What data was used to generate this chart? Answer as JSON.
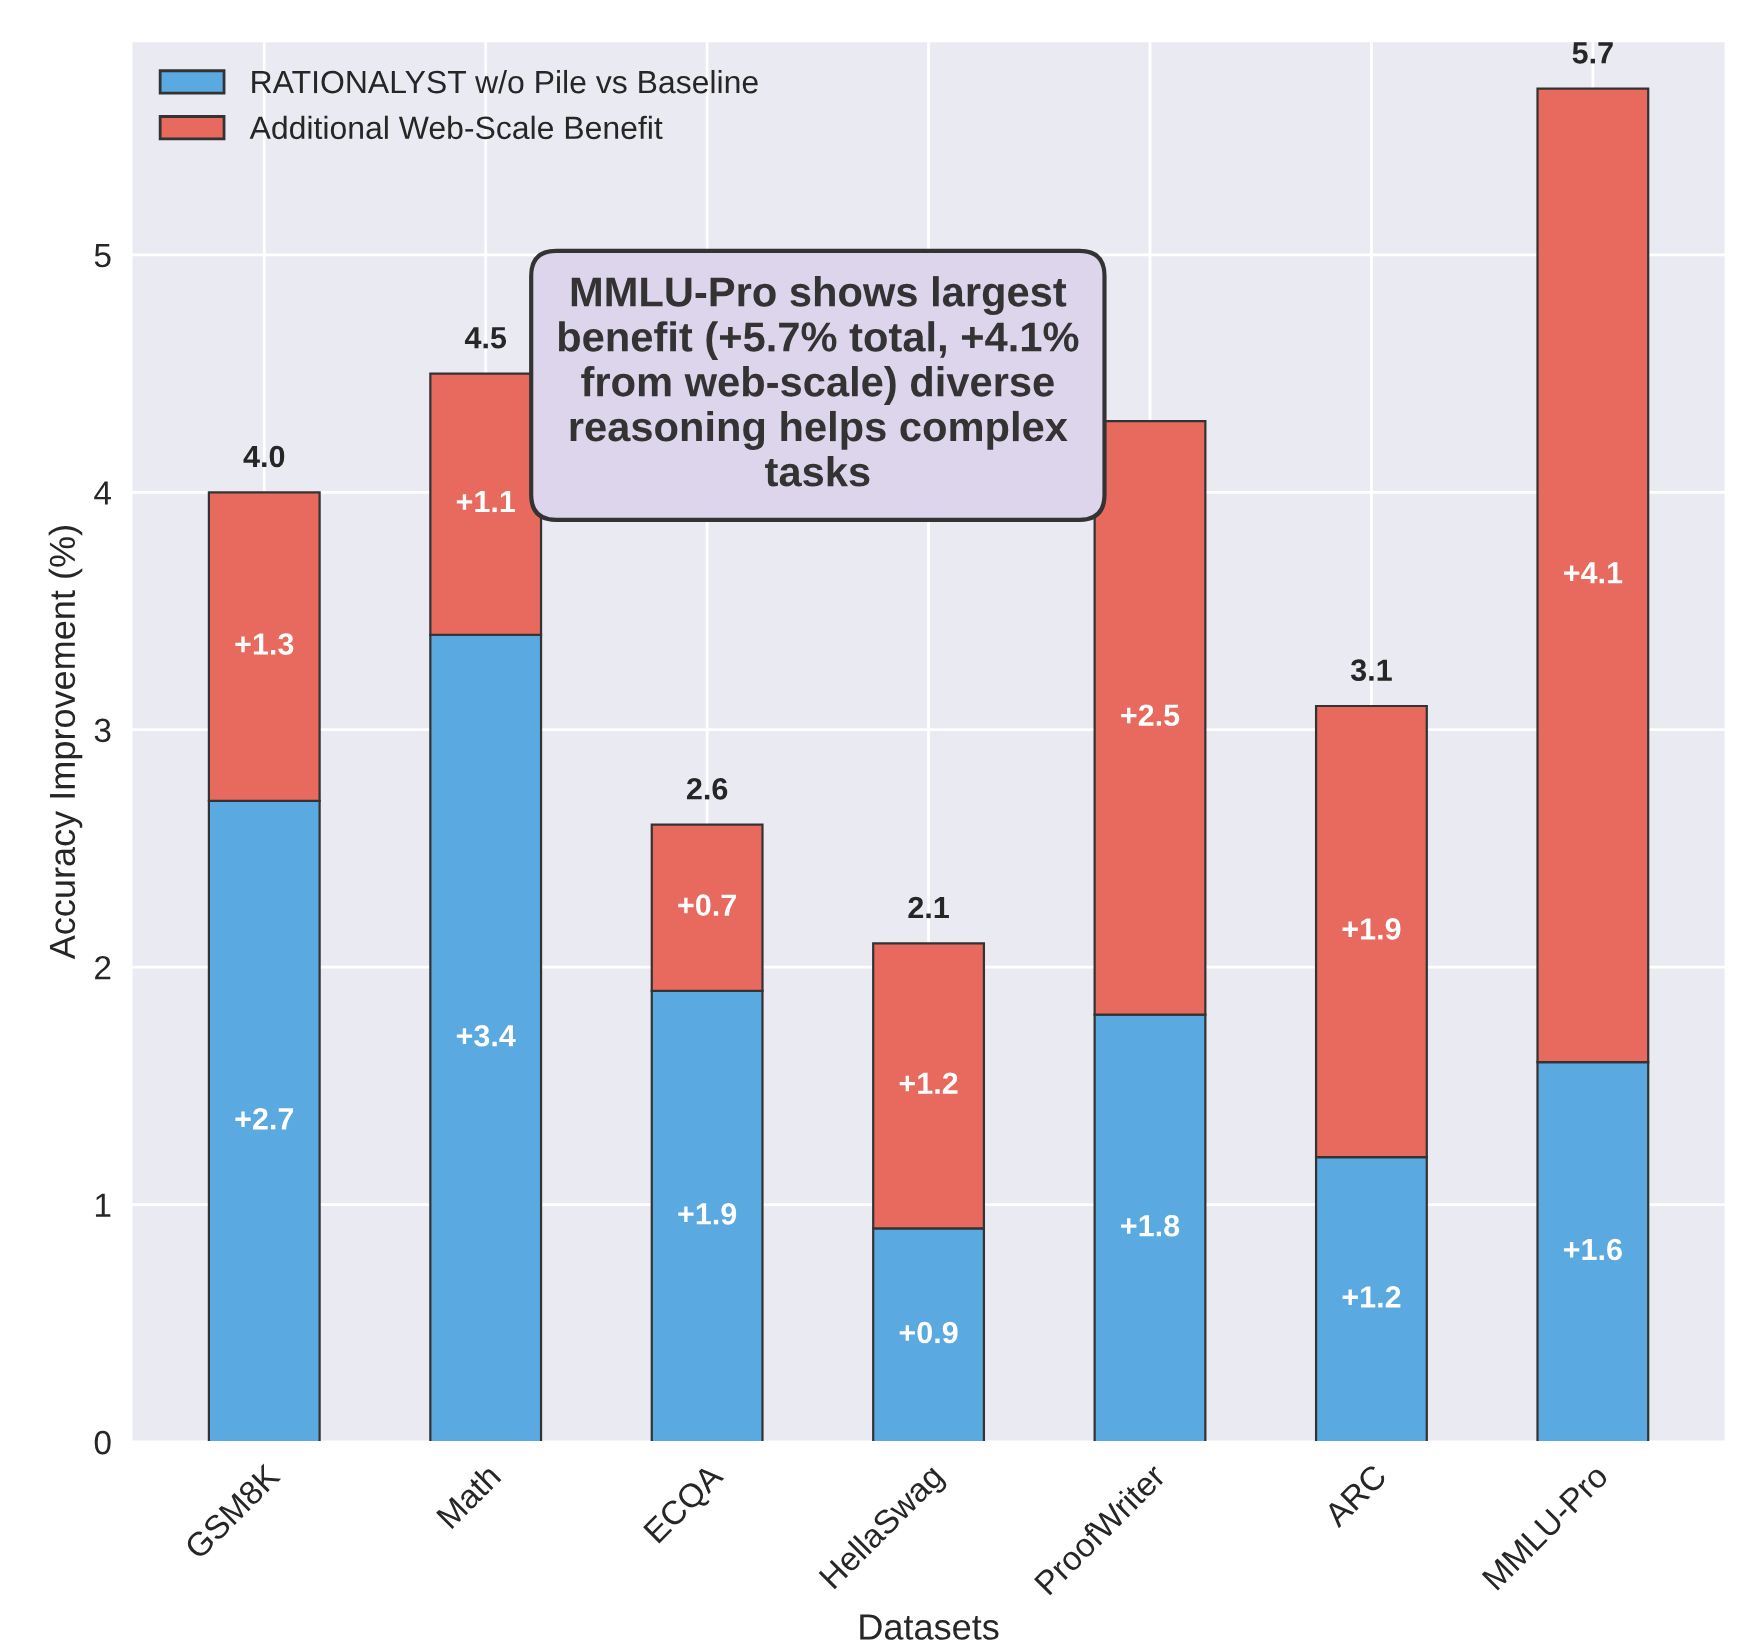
{
  "chart_data": {
    "type": "bar",
    "stacked": true,
    "xlabel": "Datasets",
    "ylabel": "Accuracy Improvement (%)",
    "categories": [
      "GSM8K",
      "Math",
      "ECQA",
      "HellaSwag",
      "ProofWriter",
      "ARC",
      "MMLU-Pro"
    ],
    "series": [
      {
        "name": "RATIONALYST w/o Pile vs Baseline",
        "color": "#5aa9e0",
        "values": [
          2.7,
          3.4,
          1.9,
          0.9,
          1.8,
          1.2,
          1.6
        ],
        "value_labels": [
          "+2.7",
          "+3.4",
          "+1.9",
          "+0.9",
          "+1.8",
          "+1.2",
          "+1.6"
        ]
      },
      {
        "name": "Additional Web-Scale Benefit",
        "color": "#e8695d",
        "values": [
          1.3,
          1.1,
          0.7,
          1.2,
          2.5,
          1.9,
          4.1
        ],
        "value_labels": [
          "+1.3",
          "+1.1",
          "+0.7",
          "+1.2",
          "+2.5",
          "+1.9",
          "+4.1"
        ]
      }
    ],
    "totals": [
      "4.0",
      "4.5",
      "2.6",
      "2.1",
      null,
      "3.1",
      "5.7"
    ],
    "ylim": [
      0,
      5.9
    ],
    "yticks": [
      0,
      1,
      2,
      3,
      4,
      5
    ],
    "grid": true,
    "legend": "top left",
    "annotations": [
      "MMLU-Pro shows largest benefit (+5.7% total, +4.1% from web-scale) diverse reasoning helps complex tasks"
    ]
  }
}
